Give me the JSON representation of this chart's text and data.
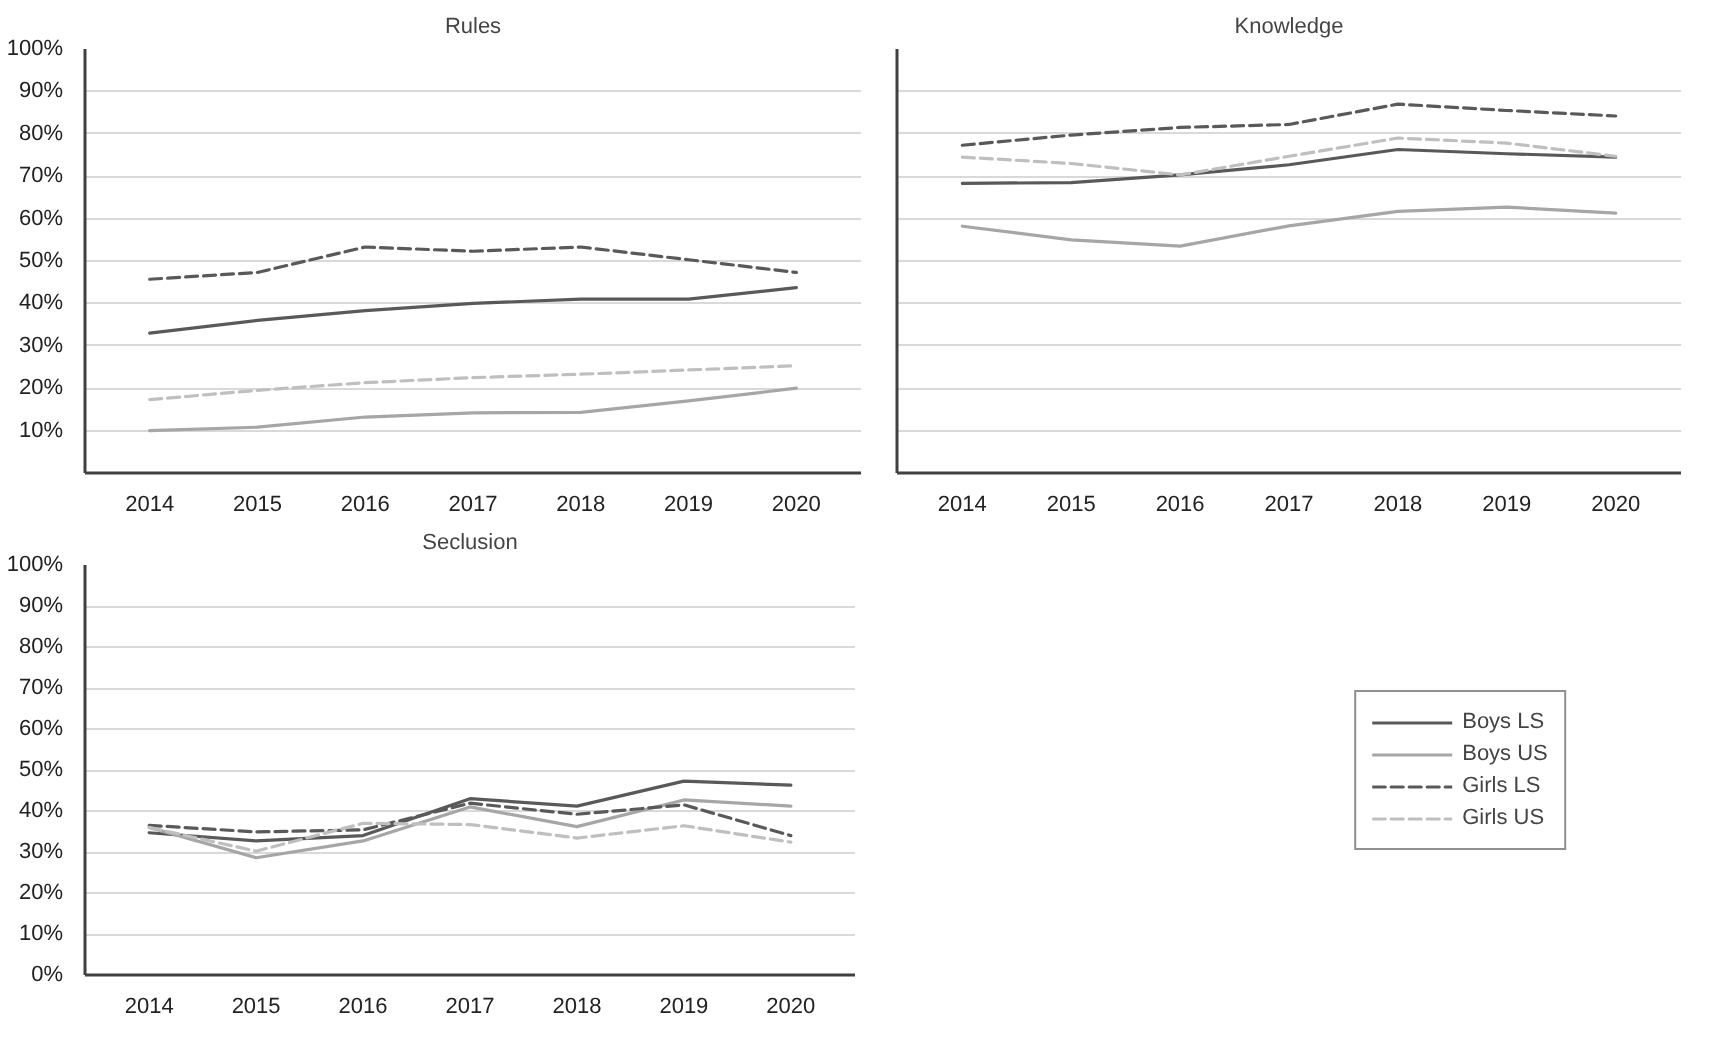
{
  "chart_data": [
    {
      "type": "line",
      "title": "Rules",
      "categories": [
        "2014",
        "2015",
        "2016",
        "2017",
        "2018",
        "2019",
        "2020"
      ],
      "ylim": [
        0,
        100
      ],
      "yticks": [
        {
          "value": 0,
          "label": null
        },
        {
          "value": 10,
          "label": "10%"
        },
        {
          "value": 20,
          "label": "20%"
        },
        {
          "value": 30,
          "label": "30%"
        },
        {
          "value": 40,
          "label": "40%"
        },
        {
          "value": 50,
          "label": "50%"
        },
        {
          "value": 60,
          "label": "60%"
        },
        {
          "value": 70,
          "label": "70%"
        },
        {
          "value": 80,
          "label": "80%"
        },
        {
          "value": 90,
          "label": "90%"
        },
        {
          "value": 100,
          "label": "100%"
        }
      ],
      "grid": "y",
      "series": [
        {
          "color": "#595959",
          "line_style": "solid",
          "values": [
            33,
            36,
            38.3,
            40,
            41,
            41,
            43.7
          ]
        },
        {
          "color": "#a6a6a6",
          "line_style": "solid",
          "values": [
            10,
            10.8,
            13.2,
            14.2,
            14.3,
            17,
            20
          ]
        },
        {
          "color": "#595959",
          "line_style": "dashed",
          "values": [
            45.7,
            47.3,
            53.3,
            52.3,
            53.3,
            50.3,
            47.3
          ]
        },
        {
          "color": "#bfbfbf",
          "line_style": "dashed",
          "values": [
            17.3,
            19.5,
            21.3,
            22.5,
            23.3,
            24.3,
            25.3
          ]
        }
      ]
    },
    {
      "type": "line",
      "title": "Knowledge",
      "categories": [
        "2014",
        "2015",
        "2016",
        "2017",
        "2018",
        "2019",
        "2020"
      ],
      "ylim": [
        0,
        100
      ],
      "yticks": [
        0,
        10,
        20,
        30,
        40,
        50,
        60,
        70,
        80,
        90,
        100
      ],
      "tick_labels": "x",
      "grid": "y",
      "series": [
        {
          "color": "#595959",
          "line_style": "solid",
          "values": [
            68.3,
            68.5,
            70.3,
            72.7,
            76.3,
            75.3,
            74.5
          ]
        },
        {
          "color": "#a6a6a6",
          "line_style": "solid",
          "values": [
            58.2,
            55,
            53.5,
            58.3,
            61.7,
            62.7,
            61.3
          ]
        },
        {
          "color": "#595959",
          "line_style": "dashed",
          "values": [
            77.3,
            79.7,
            81.5,
            82.2,
            87,
            85.5,
            84.2
          ]
        },
        {
          "color": "#bfbfbf",
          "line_style": "dashed",
          "values": [
            74.5,
            73,
            70.3,
            74.7,
            79,
            77.8,
            74.7
          ]
        }
      ]
    },
    {
      "type": "line",
      "title": "Seclusion",
      "categories": [
        "2014",
        "2015",
        "2016",
        "2017",
        "2018",
        "2019",
        "2020"
      ],
      "ylim": [
        0,
        100
      ],
      "yticks": [
        {
          "value": 0,
          "label": "0%"
        },
        {
          "value": 10,
          "label": "10%"
        },
        {
          "value": 20,
          "label": "20%"
        },
        {
          "value": 30,
          "label": "30%"
        },
        {
          "value": 40,
          "label": "40%"
        },
        {
          "value": 50,
          "label": "50%"
        },
        {
          "value": 60,
          "label": "60%"
        },
        {
          "value": 70,
          "label": "70%"
        },
        {
          "value": 80,
          "label": "80%"
        },
        {
          "value": 90,
          "label": "90%"
        },
        {
          "value": 100,
          "label": "100%"
        }
      ],
      "grid": "y",
      "legend": "right",
      "series": [
        {
          "name": "Boys LS",
          "color": "#595959",
          "line_style": "solid",
          "values": [
            34.7,
            32.7,
            34,
            43,
            41.2,
            47.3,
            46.3
          ]
        },
        {
          "name": "Boys US",
          "color": "#a6a6a6",
          "line_style": "solid",
          "values": [
            36,
            28.6,
            32.7,
            41,
            36.2,
            42.7,
            41.2
          ]
        },
        {
          "name": "Girls LS",
          "color": "#595959",
          "line_style": "dashed",
          "values": [
            36.5,
            34.9,
            35.4,
            41.9,
            39.2,
            41.5,
            34
          ]
        },
        {
          "name": "Girls US",
          "color": "#bfbfbf",
          "line_style": "dashed",
          "values": [
            36,
            30.2,
            37,
            36.7,
            33.4,
            36.4,
            32.4
          ]
        }
      ]
    }
  ]
}
